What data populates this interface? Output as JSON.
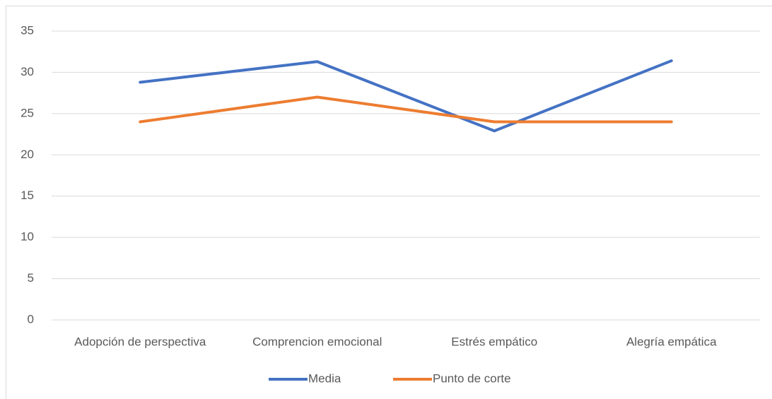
{
  "chart_data": {
    "type": "line",
    "categories": [
      "Adopción de perspectiva",
      "Comprencion emocional",
      "Estrés empático",
      "Alegría empática"
    ],
    "series": [
      {
        "name": "Media",
        "color": "#4472c4",
        "values": [
          28.8,
          31.3,
          22.9,
          31.4
        ]
      },
      {
        "name": "Punto de corte",
        "color": "#ed7d31",
        "values": [
          24,
          27,
          24,
          24
        ]
      }
    ],
    "ylim": [
      0,
      35
    ],
    "yticks": [
      0,
      5,
      10,
      15,
      20,
      25,
      30,
      35
    ],
    "grid": true,
    "legend": "bottom"
  }
}
